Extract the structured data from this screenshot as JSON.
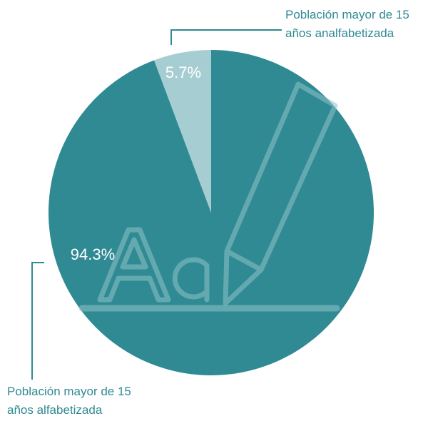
{
  "chart_data": {
    "type": "pie",
    "categories": [
      "Población mayor de 15 años alfabetizada",
      "Población mayor de 15 años analfabetizada"
    ],
    "values": [
      94.3,
      5.7
    ],
    "value_labels": [
      "94.3%",
      "5.7%"
    ],
    "colors": [
      "#2f8a93",
      "#a6cdd2"
    ]
  }
}
